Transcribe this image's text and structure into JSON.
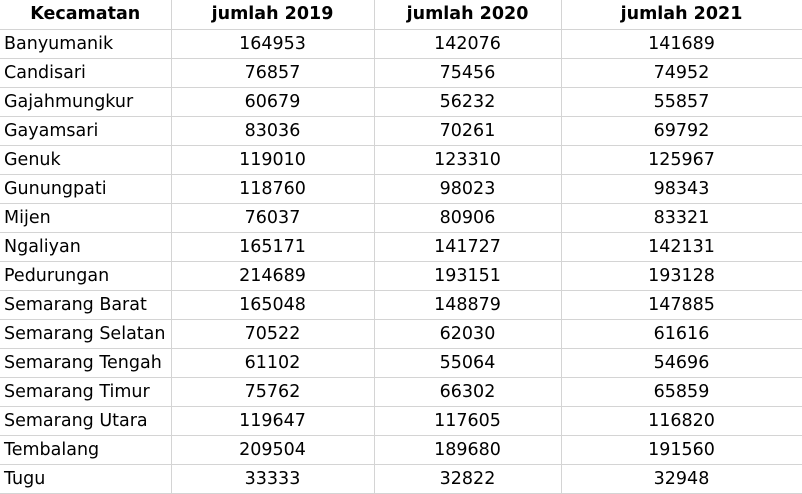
{
  "table": {
    "headers": [
      "Kecamatan",
      "jumlah 2019",
      "jumlah 2020",
      "jumlah 2021"
    ],
    "rows": [
      [
        "Banyumanik",
        "164953",
        "142076",
        "141689"
      ],
      [
        "Candisari",
        "76857",
        "75456",
        "74952"
      ],
      [
        "Gajahmungkur",
        "60679",
        "56232",
        "55857"
      ],
      [
        "Gayamsari",
        "83036",
        "70261",
        "69792"
      ],
      [
        "Genuk",
        "119010",
        "123310",
        "125967"
      ],
      [
        "Gunungpati",
        "118760",
        "98023",
        "98343"
      ],
      [
        "Mijen",
        "76037",
        "80906",
        "83321"
      ],
      [
        "Ngaliyan",
        "165171",
        "141727",
        "142131"
      ],
      [
        "Pedurungan",
        "214689",
        "193151",
        "193128"
      ],
      [
        "Semarang Barat",
        "165048",
        "148879",
        "147885"
      ],
      [
        "Semarang Selatan",
        "70522",
        "62030",
        "61616"
      ],
      [
        "Semarang Tengah",
        "61102",
        "55064",
        "54696"
      ],
      [
        "Semarang Timur",
        "75762",
        "66302",
        "65859"
      ],
      [
        "Semarang Utara",
        "119647",
        "117605",
        "116820"
      ],
      [
        "Tembalang",
        "209504",
        "189680",
        "191560"
      ],
      [
        "Tugu",
        "33333",
        "32822",
        "32948"
      ]
    ]
  }
}
